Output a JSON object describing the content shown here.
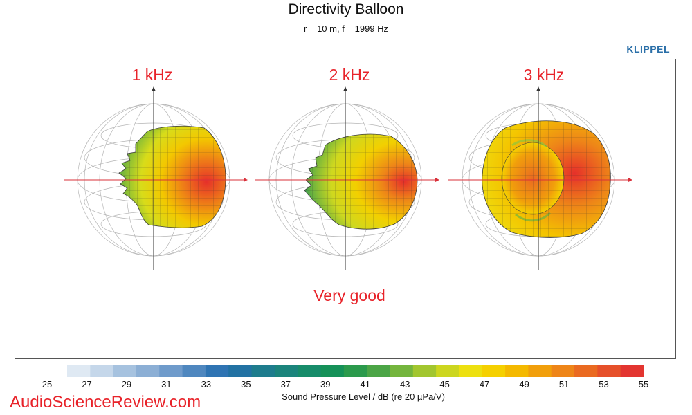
{
  "title": "Directivity Balloon",
  "subtitle": "r = 10 m, f =  1999 Hz",
  "brand": "KLIPPEL",
  "verdict": "Very good",
  "watermark": "AudioScienceReview.com",
  "colorbar": {
    "label": "Sound Pressure Level / dB (re 20 µPa/V)",
    "min": 25,
    "max": 55,
    "ticks": [
      "25",
      "27",
      "29",
      "31",
      "33",
      "35",
      "37",
      "39",
      "41",
      "43",
      "45",
      "47",
      "49",
      "51",
      "53",
      "55"
    ],
    "colors": [
      "#dfe9f3",
      "#c5d7ea",
      "#a6c2df",
      "#8cafd5",
      "#6f9bcb",
      "#4f87bf",
      "#2f74b3",
      "#2272a3",
      "#1e7c8d",
      "#1b847c",
      "#178c6a",
      "#159158",
      "#2b9a4c",
      "#4ba546",
      "#74b53d",
      "#a2c62f",
      "#ccd61f",
      "#ede010",
      "#f5d000",
      "#f4b900",
      "#f19f0b",
      "#ee8518",
      "#ea6a21",
      "#e6502a",
      "#e33530"
    ]
  },
  "chart_data": {
    "type": "other",
    "title": "Directivity Balloon",
    "subtitle": "r = 10 m, f =  1999 Hz",
    "colorbar": {
      "label": "Sound Pressure Level / dB (re 20 µPa/V)",
      "range": [
        25,
        55
      ],
      "step": 2
    },
    "panels": [
      {
        "label": "1 kHz",
        "spl_range_db": [
          40,
          55
        ],
        "max_direction": "front"
      },
      {
        "label": "2 kHz",
        "spl_range_db": [
          40,
          55
        ],
        "max_direction": "front"
      },
      {
        "label": "3 kHz",
        "spl_range_db": [
          47,
          55
        ],
        "max_direction": "front"
      }
    ],
    "annotation": "Very good"
  }
}
